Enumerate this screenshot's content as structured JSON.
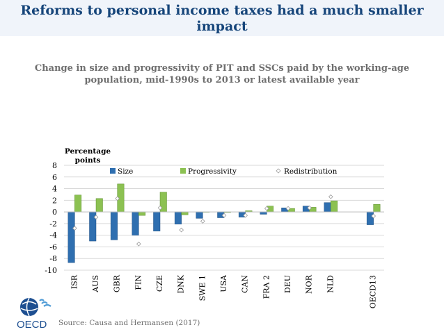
{
  "slide": {
    "title_line1": "Reforms to personal income taxes had a much smaller",
    "title_line2": "impact",
    "source": "Source: Causa and Hermansen (2017)",
    "logo_text": "OECD"
  },
  "colors": {
    "title": "#16457a",
    "size": "#2f6fb0",
    "progressivity": "#8cc152",
    "redistribution": "#ffffff"
  },
  "chart_data": {
    "type": "bar",
    "title_line1": "Change in size and progressivity of PIT and SSCs paid by the working-age",
    "title_line2": "population, mid-1990s to 2013 or latest available year",
    "ylabel_line1": "Percentage",
    "ylabel_line2": "points",
    "ylim": [
      -10,
      8
    ],
    "yticks": [
      -10,
      -8,
      -6,
      -4,
      -2,
      0,
      2,
      4,
      6,
      8
    ],
    "grid": true,
    "legend_position": "top",
    "categories": [
      "ISR",
      "AUS",
      "GBR",
      "FIN",
      "CZE",
      "DNK",
      "SWE 1",
      "USA",
      "CAN",
      "FRA 2",
      "DEU",
      "NOR",
      "NLD",
      "",
      "OECD13"
    ],
    "series": [
      {
        "name": "Size",
        "kind": "bar",
        "values": [
          -8.7,
          -5.0,
          -4.8,
          -4.0,
          -3.3,
          -2.1,
          -1.1,
          -1.0,
          -0.9,
          -0.4,
          0.7,
          1.0,
          1.6,
          null,
          -2.2
        ]
      },
      {
        "name": "Progressivity",
        "kind": "bar",
        "values": [
          2.9,
          2.3,
          4.8,
          -0.6,
          3.4,
          -0.5,
          0.0,
          -0.1,
          0.2,
          1.0,
          0.6,
          0.8,
          1.9,
          null,
          1.3
        ]
      },
      {
        "name": "Redistribution",
        "kind": "marker",
        "values": [
          -2.8,
          -0.9,
          2.3,
          -5.5,
          0.7,
          -3.1,
          -1.6,
          -0.6,
          -0.6,
          0.6,
          0.6,
          0.7,
          2.6,
          null,
          -0.7
        ]
      }
    ]
  }
}
